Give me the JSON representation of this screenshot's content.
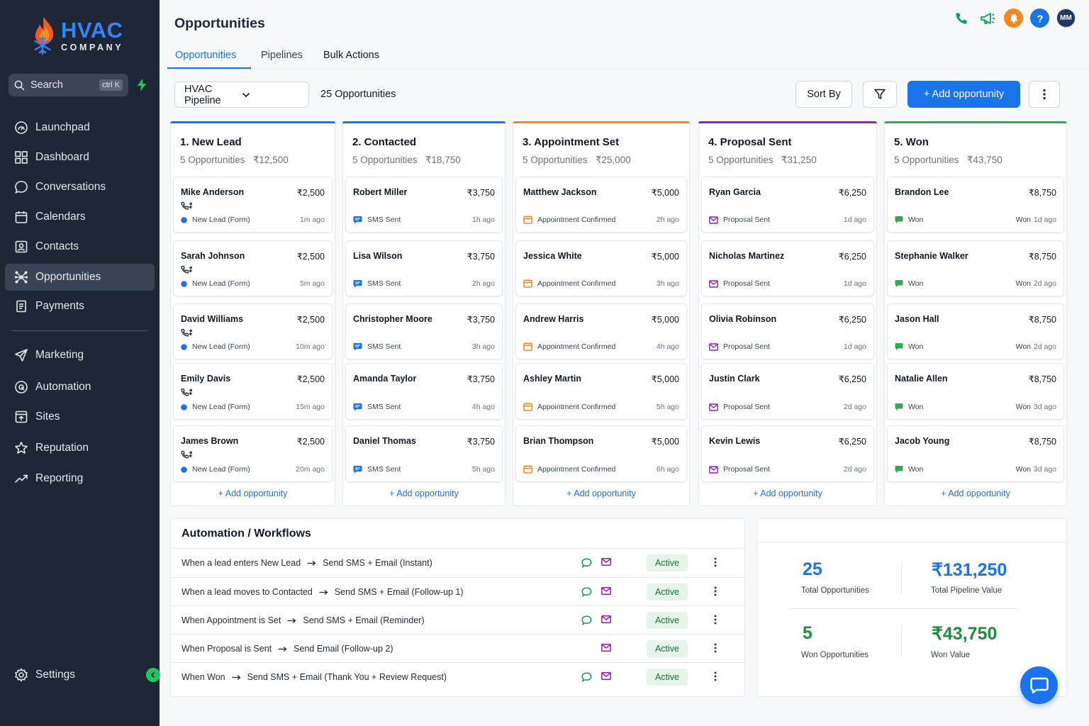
{
  "brand": {
    "name": "HVAC",
    "tagline": "COMPANY"
  },
  "search": {
    "label": "Search",
    "shortcut": "ctrl K"
  },
  "sidebar": {
    "items": [
      {
        "label": "Launchpad",
        "icon": "launchpad-icon"
      },
      {
        "label": "Dashboard",
        "icon": "dashboard-icon"
      },
      {
        "label": "Conversations",
        "icon": "chat-bubble-icon"
      },
      {
        "label": "Calendars",
        "icon": "calendar-icon"
      },
      {
        "label": "Contacts",
        "icon": "contact-card-icon"
      },
      {
        "label": "Opportunities",
        "icon": "opportunities-icon",
        "active": true
      },
      {
        "label": "Payments",
        "icon": "receipt-icon"
      },
      {
        "label": "Marketing",
        "icon": "send-icon"
      },
      {
        "label": "Automation",
        "icon": "automation-icon"
      },
      {
        "label": "Sites",
        "icon": "sites-icon"
      },
      {
        "label": "Reputation",
        "icon": "star-icon"
      },
      {
        "label": "Reporting",
        "icon": "trend-icon"
      }
    ],
    "settings": "Settings"
  },
  "header": {
    "title": "Opportunities",
    "tabs": [
      "Opportunities",
      "Pipelines",
      "Bulk Actions"
    ],
    "user_initials": "MM"
  },
  "toolbar": {
    "pipeline": "HVAC Pipeline",
    "count": "25 Opportunities",
    "sort": "Sort By",
    "add": "+ Add opportunity"
  },
  "colors": {
    "new_lead": "#1a73e8",
    "contacted": "#1a73e8",
    "appointment": "#f4871f",
    "proposal": "#8e24aa",
    "won": "#34a853"
  },
  "columns": [
    {
      "title": "1. New Lead",
      "count": "5 Opportunities",
      "total": "₹12,500",
      "cards": [
        {
          "name": "Mike Anderson",
          "value": "₹2,500",
          "status": "New Lead (Form)",
          "time": "1m ago"
        },
        {
          "name": "Sarah Johnson",
          "value": "₹2,500",
          "status": "New Lead (Form)",
          "time": "5m ago"
        },
        {
          "name": "David Williams",
          "value": "₹2,500",
          "status": "New Lead (Form)",
          "time": "10m ago"
        },
        {
          "name": "Emily Davis",
          "value": "₹2,500",
          "status": "New Lead (Form)",
          "time": "15m ago"
        },
        {
          "name": "James Brown",
          "value": "₹2,500",
          "status": "New Lead (Form)",
          "time": "20m ago"
        }
      ]
    },
    {
      "title": "2. Contacted",
      "count": "5 Opportunities",
      "total": "₹18,750",
      "cards": [
        {
          "name": "Robert Miller",
          "value": "₹3,750",
          "status": "SMS Sent",
          "time": "1h ago"
        },
        {
          "name": "Lisa Wilson",
          "value": "₹3,750",
          "status": "SMS Sent",
          "time": "2h ago"
        },
        {
          "name": "Christopher Moore",
          "value": "₹3,750",
          "status": "SMS Sent",
          "time": "3h ago"
        },
        {
          "name": "Amanda Taylor",
          "value": "₹3,750",
          "status": "SMS Sent",
          "time": "4h ago"
        },
        {
          "name": "Daniel Thomas",
          "value": "₹3,750",
          "status": "SMS Sent",
          "time": "5h ago"
        }
      ]
    },
    {
      "title": "3. Appointment Set",
      "count": "5 Opportunities",
      "total": "₹25,000",
      "cards": [
        {
          "name": "Matthew Jackson",
          "value": "₹5,000",
          "status": "Appointment Confirmed",
          "time": "2h ago"
        },
        {
          "name": "Jessica White",
          "value": "₹5,000",
          "status": "Appointment Confirmed",
          "time": "3h ago"
        },
        {
          "name": "Andrew Harris",
          "value": "₹5,000",
          "status": "Appointment Confirmed",
          "time": "4h ago"
        },
        {
          "name": "Ashley Martin",
          "value": "₹5,000",
          "status": "Appointment Confirmed",
          "time": "5h ago"
        },
        {
          "name": "Brian Thompson",
          "value": "₹5,000",
          "status": "Appointment Confirmed",
          "time": "6h ago"
        }
      ]
    },
    {
      "title": "4. Proposal Sent",
      "count": "5 Opportunities",
      "total": "₹31,250",
      "cards": [
        {
          "name": "Ryan Garcia",
          "value": "₹6,250",
          "status": "Proposal Sent",
          "time": "1d ago"
        },
        {
          "name": "Nicholas Martinez",
          "value": "₹6,250",
          "status": "Proposal Sent",
          "time": "1d ago"
        },
        {
          "name": "Olivia Robinson",
          "value": "₹6,250",
          "status": "Proposal Sent",
          "time": "1d ago"
        },
        {
          "name": "Justin Clark",
          "value": "₹6,250",
          "status": "Proposal Sent",
          "time": "2d ago"
        },
        {
          "name": "Kevin Lewis",
          "value": "₹6,250",
          "status": "Proposal Sent",
          "time": "2d ago"
        }
      ]
    },
    {
      "title": "5. Won",
      "count": "5 Opportunities",
      "total": "₹43,750",
      "cards": [
        {
          "name": "Brandon Lee",
          "value": "₹8,750",
          "status": "Won",
          "won": "Won",
          "time": "1d ago"
        },
        {
          "name": "Stephanie Walker",
          "value": "₹8,750",
          "status": "Won",
          "won": "Won",
          "time": "2d ago"
        },
        {
          "name": "Jason Hall",
          "value": "₹8,750",
          "status": "Won",
          "won": "Won",
          "time": "2d ago"
        },
        {
          "name": "Natalie Allen",
          "value": "₹8,750",
          "status": "Won",
          "won": "Won",
          "time": "3d ago"
        },
        {
          "name": "Jacob Young",
          "value": "₹8,750",
          "status": "Won",
          "won": "Won",
          "time": "3d ago"
        }
      ]
    }
  ],
  "add_opportunity": "+ Add opportunity",
  "automation": {
    "title": "Automation / Workflows",
    "rows": [
      {
        "trigger": "When a lead enters New Lead",
        "action": "Send SMS + Email (Instant)",
        "sms": true,
        "status": "Active"
      },
      {
        "trigger": "When a lead moves to Contacted",
        "action": "Send SMS + Email (Follow-up 1)",
        "sms": true,
        "status": "Active"
      },
      {
        "trigger": "When Appointment is Set",
        "action": "Send SMS + Email (Reminder)",
        "sms": true,
        "status": "Active"
      },
      {
        "trigger": "When Proposal is Sent",
        "action": "Send Email (Follow-up 2)",
        "sms": false,
        "status": "Active"
      },
      {
        "trigger": "When Won",
        "action": "Send SMS + Email (Thank You + Review Request)",
        "sms": true,
        "status": "Active"
      }
    ]
  },
  "stats": {
    "total_opps": "25",
    "total_opps_label": "Total Opportunities",
    "pipeline_value": "₹131,250",
    "pipeline_value_label": "Total Pipeline Value",
    "won_opps": "5",
    "won_opps_label": "Won Opportunities",
    "won_value": "₹43,750",
    "won_value_label": "Won Value"
  }
}
